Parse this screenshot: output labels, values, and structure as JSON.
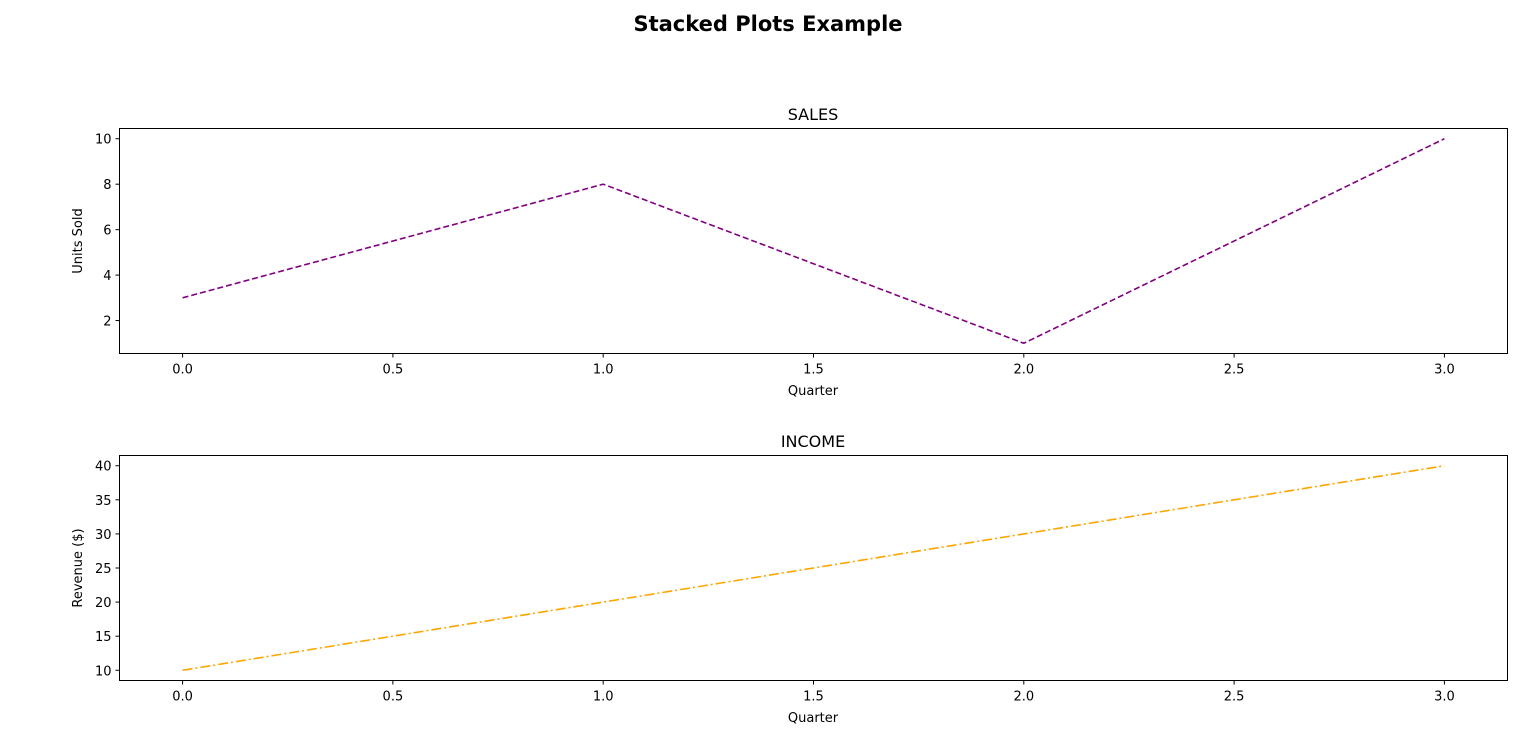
{
  "figure": {
    "title": "Stacked Plots Example"
  },
  "chart_data": [
    {
      "type": "line",
      "title": "SALES",
      "xlabel": "Quarter",
      "ylabel": "Units Sold",
      "x": [
        0,
        1,
        2,
        3
      ],
      "series": [
        {
          "values": [
            3,
            8,
            1,
            10
          ],
          "color": "#800080",
          "linestyle": "dashed"
        }
      ],
      "xlim": [
        -0.15,
        3.15
      ],
      "ylim": [
        0.55,
        10.45
      ],
      "xticks": [
        "0.0",
        "0.5",
        "1.0",
        "1.5",
        "2.0",
        "2.5",
        "3.0"
      ],
      "yticks": [
        "2",
        "4",
        "6",
        "8",
        "10"
      ],
      "grid": false
    },
    {
      "type": "line",
      "title": "INCOME",
      "xlabel": "Quarter",
      "ylabel": "Revenue ($)",
      "x": [
        0,
        1,
        2,
        3
      ],
      "series": [
        {
          "values": [
            10,
            20,
            30,
            40
          ],
          "color": "#ffa500",
          "linestyle": "dashdot"
        }
      ],
      "xlim": [
        -0.15,
        3.15
      ],
      "ylim": [
        8.5,
        41.5
      ],
      "xticks": [
        "0.0",
        "0.5",
        "1.0",
        "1.5",
        "2.0",
        "2.5",
        "3.0"
      ],
      "yticks": [
        "10",
        "15",
        "20",
        "25",
        "30",
        "35",
        "40"
      ],
      "grid": false
    }
  ]
}
